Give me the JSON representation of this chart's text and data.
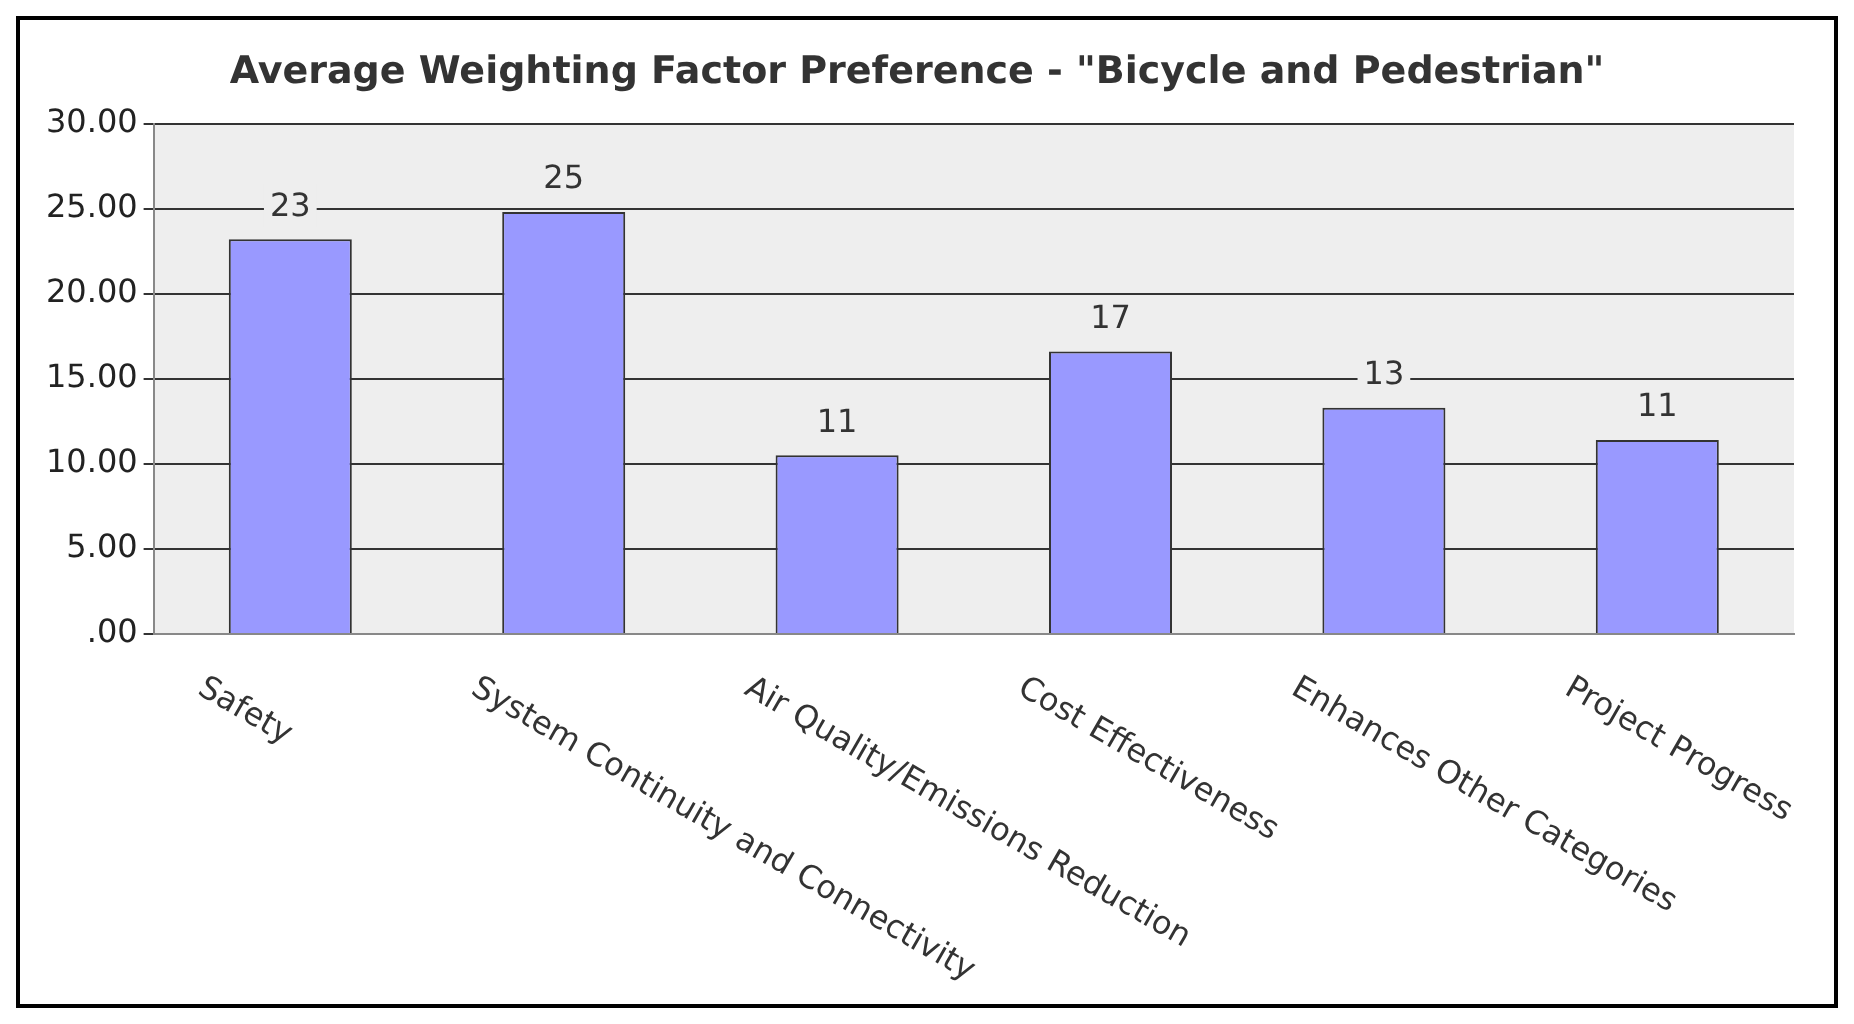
{
  "chart_data": {
    "type": "bar",
    "title": "Average Weighting Factor Preference - \"Bicycle and Pedestrian\"",
    "categories": [
      "Safety",
      "System Continuity and Connectivity",
      "Air Quality/Emissions Reduction",
      "Cost Effectiveness",
      "Enhances Other Categories",
      "Project Progress"
    ],
    "values": [
      23.2,
      24.8,
      10.5,
      16.6,
      13.3,
      11.4
    ],
    "value_labels": [
      "23",
      "25",
      "11",
      "17",
      "13",
      "11"
    ],
    "color": "#9999ff",
    "ylim": [
      0,
      30
    ],
    "yticks": [
      {
        "value": 0,
        "label": ".00"
      },
      {
        "value": 5,
        "label": "5.00"
      },
      {
        "value": 10,
        "label": "10.00"
      },
      {
        "value": 15,
        "label": "15.00"
      },
      {
        "value": 20,
        "label": "20.00"
      },
      {
        "value": 25,
        "label": "25.00"
      },
      {
        "value": 30,
        "label": "30.00"
      }
    ],
    "grid": "y"
  }
}
